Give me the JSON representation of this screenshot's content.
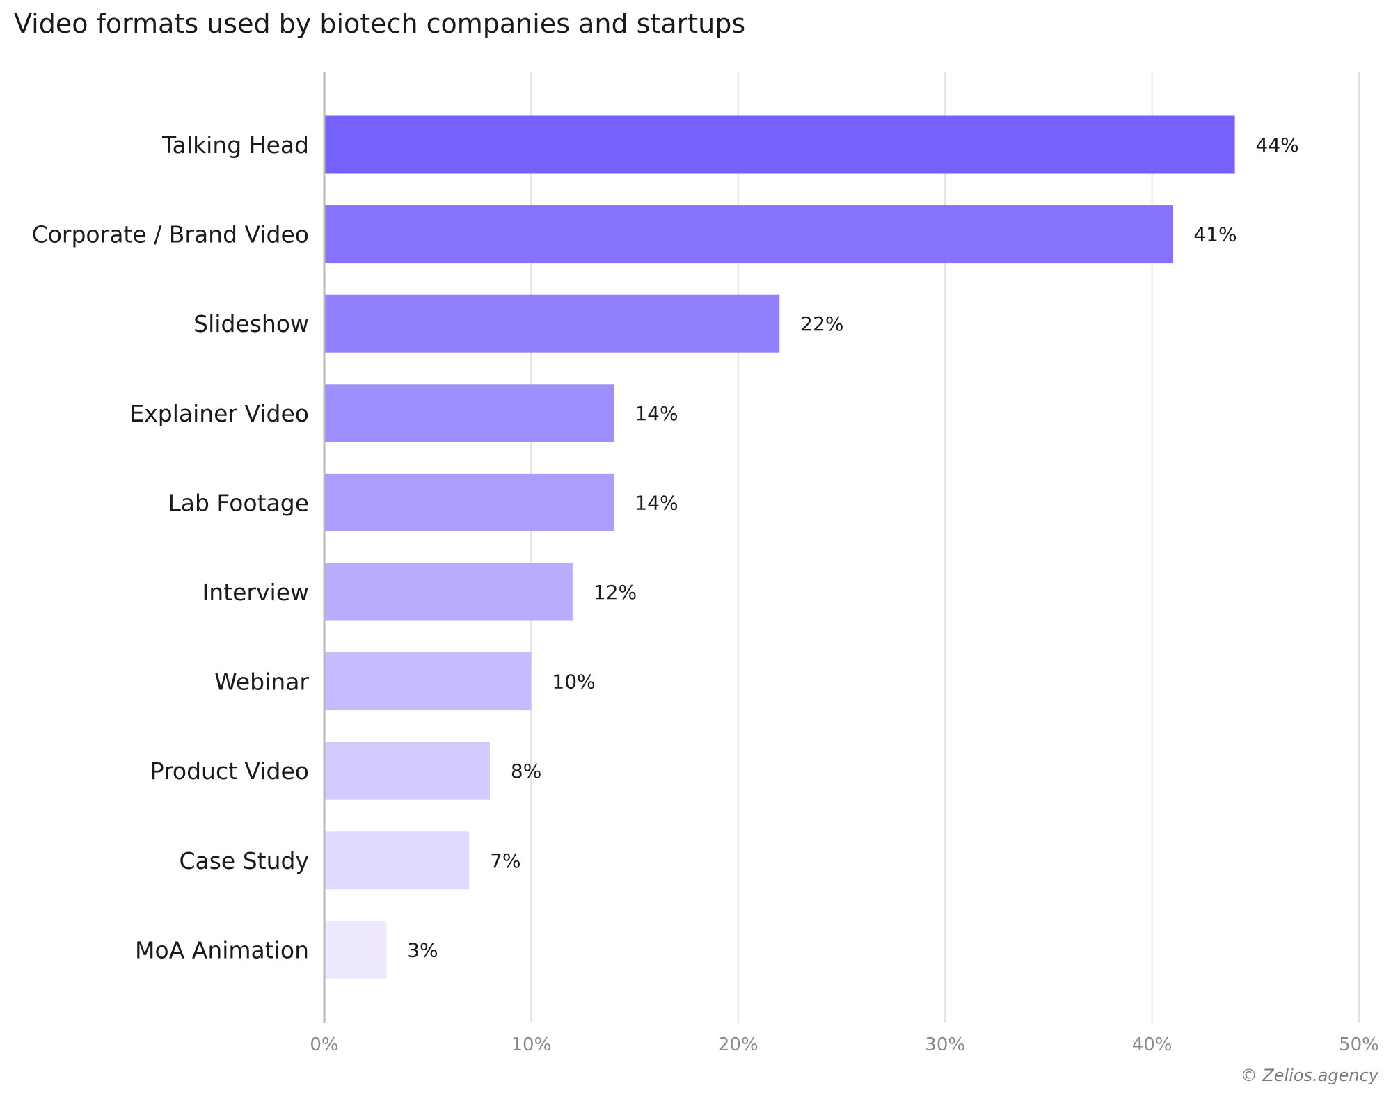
{
  "chart_data": {
    "type": "bar",
    "orientation": "horizontal",
    "title": "Video formats used by biotech companies and startups",
    "categories": [
      "Talking Head",
      "Corporate / Brand Video",
      "Slideshow",
      "Explainer Video",
      "Lab Footage",
      "Interview",
      "Webinar",
      "Product Video",
      "Case Study",
      "MoA Animation"
    ],
    "values": [
      44,
      41,
      22,
      14,
      14,
      12,
      10,
      8,
      7,
      3
    ],
    "value_labels": [
      "44%",
      "41%",
      "22%",
      "14%",
      "14%",
      "12%",
      "10%",
      "8%",
      "7%",
      "3%"
    ],
    "xlim": [
      0,
      50
    ],
    "xticks": [
      0,
      10,
      20,
      30,
      40,
      50
    ],
    "xtick_labels": [
      "0%",
      "10%",
      "20%",
      "30%",
      "40%",
      "50%"
    ],
    "grid": "vertical",
    "colors": [
      "#7562fd",
      "#8573fd",
      "#9181fd",
      "#9d8ffd",
      "#aa9dfd",
      "#b8adfd",
      "#c6bcfd",
      "#d3cafd",
      "#e0d9fd",
      "#eee9fd"
    ]
  },
  "credit": "© Zelios.agency"
}
